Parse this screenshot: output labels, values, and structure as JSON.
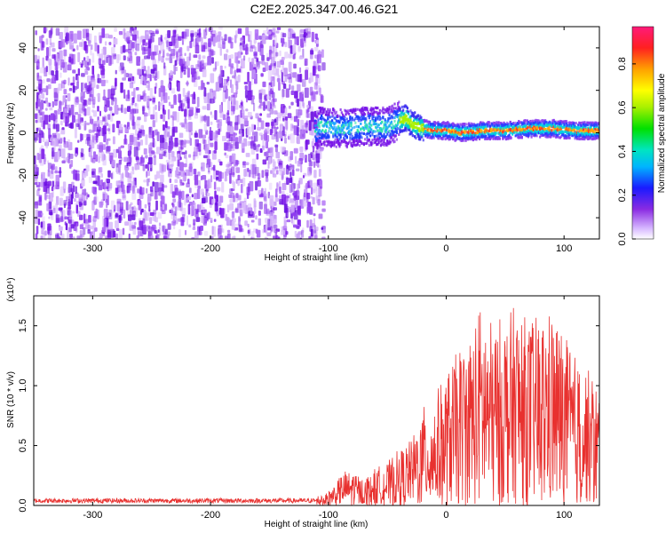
{
  "title": "C2E2.2025.347.00.46.G21",
  "chart_data": [
    {
      "type": "heatmap",
      "name": "spectrogram",
      "xlabel": "Height of straight line (km)",
      "ylabel": "Frequency (Hz)",
      "xlim": [
        -350,
        130
      ],
      "ylim": [
        -50,
        50
      ],
      "xticks": [
        "-300",
        "-200",
        "-100",
        "0",
        "100"
      ],
      "xtick_values": [
        -300,
        -200,
        -100,
        0,
        100
      ],
      "yticks": [
        "-40",
        "-20",
        "0",
        "20",
        "40"
      ],
      "ytick_values": [
        -40,
        -20,
        0,
        20,
        40
      ],
      "noise_region_km": [
        -350,
        -110
      ],
      "signal_track": {
        "x": [
          -110,
          -90,
          -70,
          -50,
          -40,
          -35,
          -30,
          -20,
          -10,
          0,
          10,
          30,
          50,
          70,
          90,
          110,
          130
        ],
        "y": [
          3,
          2,
          3,
          3,
          6,
          7,
          4,
          2,
          1,
          1,
          0,
          1,
          1,
          2,
          2,
          1,
          1
        ]
      },
      "colorbar": {
        "label": "Normalized spectral amplitude",
        "ticks": [
          "0.0",
          "0.2",
          "0.4",
          "0.6",
          "0.8"
        ],
        "tick_values": [
          0.0,
          0.2,
          0.4,
          0.6,
          0.8
        ],
        "range": [
          0,
          0.97
        ]
      }
    },
    {
      "type": "line",
      "name": "snr",
      "xlabel": "Height of straight line (km)",
      "ylabel": "SNR (10 * v/v)",
      "scale_label": "(x10⁴)",
      "xlim": [
        -350,
        130
      ],
      "ylim": [
        0,
        1.75
      ],
      "xticks": [
        "-300",
        "-200",
        "-100",
        "0",
        "100"
      ],
      "xtick_values": [
        -300,
        -200,
        -100,
        0,
        100
      ],
      "yticks": [
        "0.0",
        "0.5",
        "1.0",
        "1.5"
      ],
      "ytick_values": [
        0,
        0.5,
        1.0,
        1.5
      ],
      "color": "#e8312f",
      "envelope": {
        "x": [
          -350,
          -120,
          -100,
          -90,
          -80,
          -70,
          -60,
          -50,
          -40,
          -30,
          -20,
          -10,
          0,
          10,
          20,
          30,
          40,
          50,
          60,
          70,
          80,
          90,
          100,
          110,
          120,
          130
        ],
        "y": [
          0.05,
          0.05,
          0.12,
          0.25,
          0.3,
          0.22,
          0.3,
          0.35,
          0.45,
          0.55,
          0.8,
          0.9,
          1.1,
          1.3,
          1.45,
          1.7,
          1.5,
          1.6,
          1.7,
          1.55,
          1.6,
          1.65,
          1.45,
          1.25,
          1.15,
          1.0
        ]
      }
    }
  ]
}
